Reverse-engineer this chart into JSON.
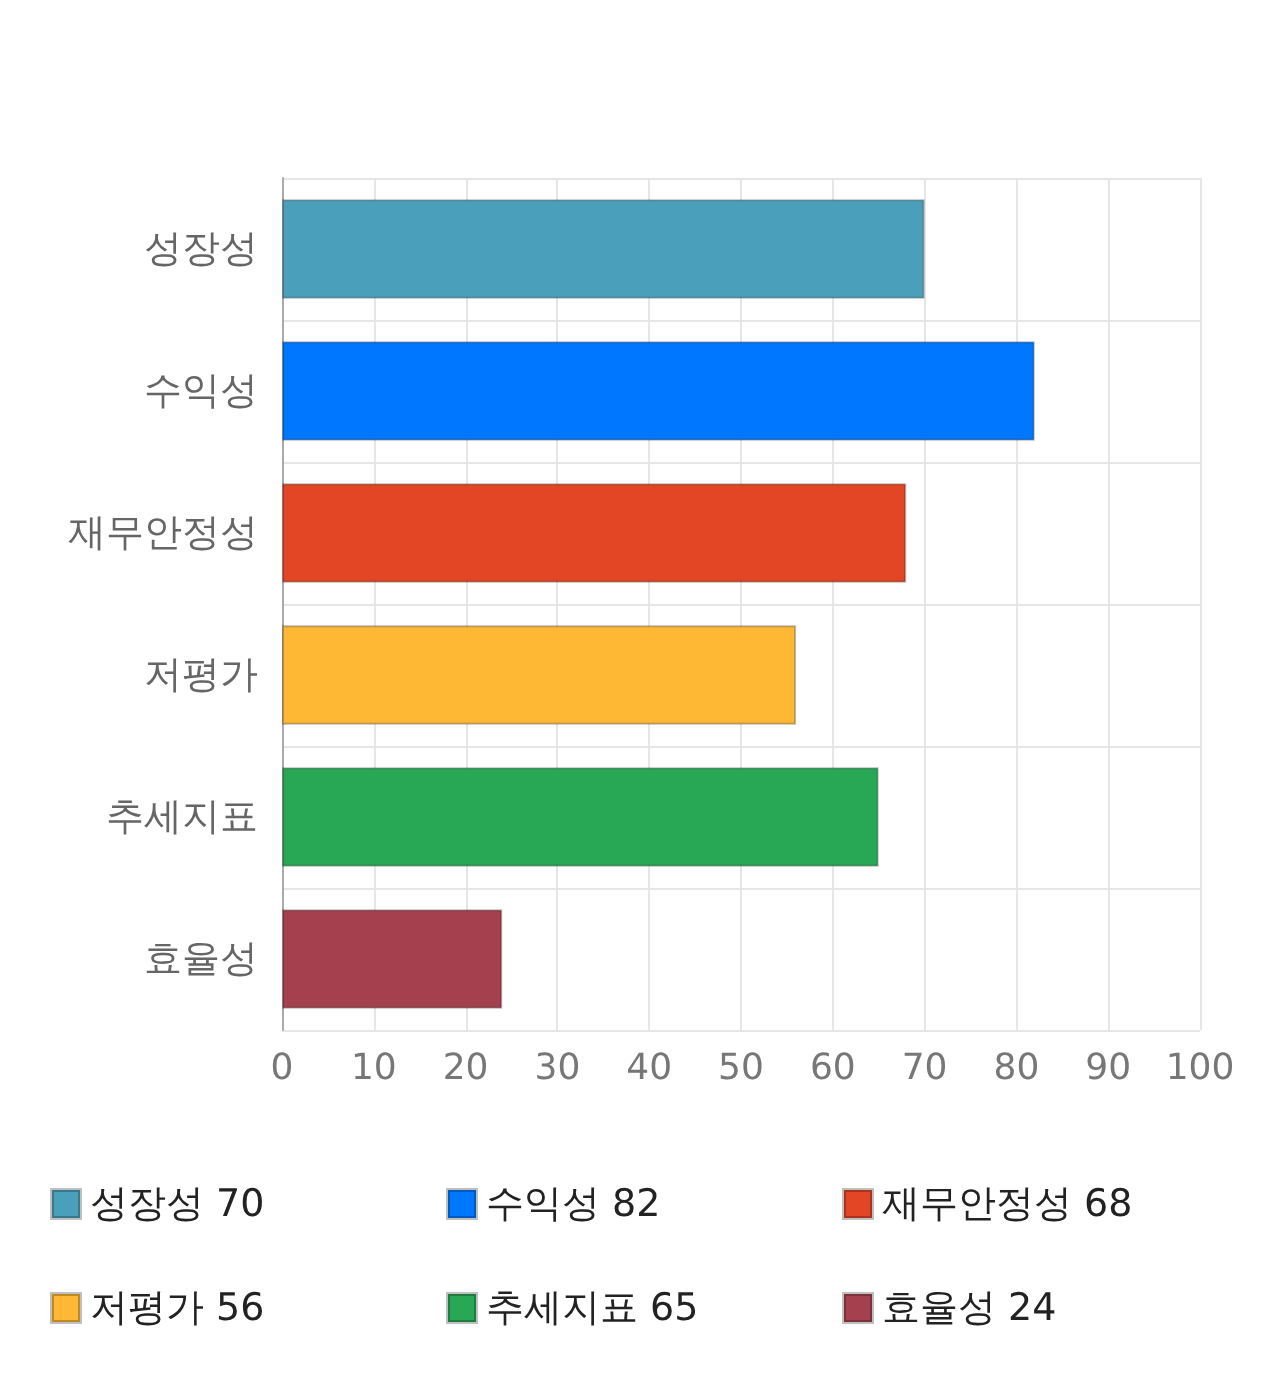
{
  "chart_data": {
    "type": "bar",
    "orientation": "horizontal",
    "stacked": true,
    "categories": [
      "성장성",
      "수익성",
      "재무안정성",
      "저평가",
      "추세지표",
      "효율성"
    ],
    "series": [
      {
        "name": "성장성 70",
        "color": "#4aa0bb",
        "values": [
          70,
          null,
          null,
          null,
          null,
          null
        ]
      },
      {
        "name": "수익성 82",
        "color": "#0077ff",
        "values": [
          null,
          82,
          null,
          null,
          null,
          null
        ]
      },
      {
        "name": "재무안정성 68",
        "color": "#e24624",
        "values": [
          null,
          null,
          68,
          null,
          null,
          null
        ]
      },
      {
        "name": "저평가 56",
        "color": "#ffb833",
        "values": [
          null,
          null,
          null,
          56,
          null,
          null
        ]
      },
      {
        "name": "추세지표 65",
        "color": "#28a855",
        "values": [
          null,
          null,
          null,
          null,
          65,
          null
        ]
      },
      {
        "name": "효율성 24",
        "color": "#a5404f",
        "values": [
          null,
          null,
          null,
          null,
          null,
          24
        ]
      }
    ],
    "xlim": [
      0,
      100
    ],
    "xticks": [
      0,
      10,
      20,
      30,
      40,
      50,
      60,
      70,
      80,
      90,
      100
    ],
    "grid": true,
    "legend": "bottom"
  }
}
